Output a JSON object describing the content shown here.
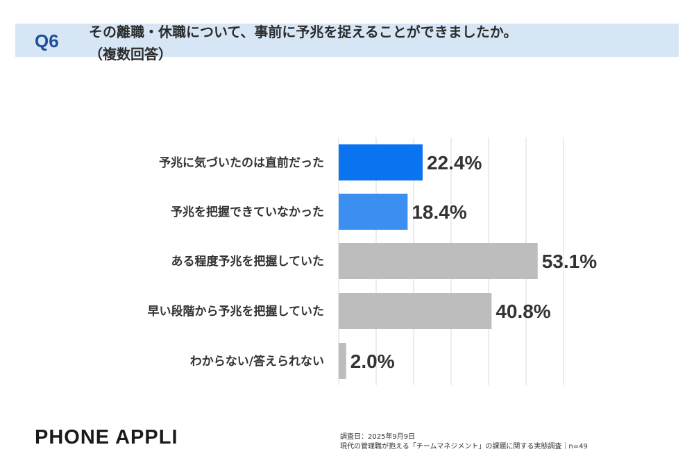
{
  "header": {
    "question_number": "Q6",
    "question_line1": "その離職・休職について、事前に予兆を捉えることができましたか。",
    "question_line2": "（複数回答）"
  },
  "chart_data": {
    "type": "bar",
    "orientation": "horizontal",
    "categories": [
      "予兆に気づいたのは直前だった",
      "予兆を把握できていなかった",
      "ある程度予兆を把握していた",
      "早い段階から予兆を把握していた",
      "わからない/答えられない"
    ],
    "values": [
      22.4,
      18.4,
      53.1,
      40.8,
      2.0
    ],
    "value_labels": [
      "22.4%",
      "18.4%",
      "53.1%",
      "40.8%",
      "2.0%"
    ],
    "bar_colors": [
      "#0a73f0",
      "#3b8ff0",
      "#bdbdbd",
      "#bdbdbd",
      "#bdbdbd"
    ],
    "xlim": [
      0,
      60
    ],
    "grid": true,
    "gridline_color": "#d9d9d9"
  },
  "footer": {
    "brand": "PHONE APPLI",
    "source_line1": "調査日：2025年9月9日",
    "source_line2": "現代の管理職が抱える「チームマネジメント」の課題に関する実態調査｜n=49"
  }
}
